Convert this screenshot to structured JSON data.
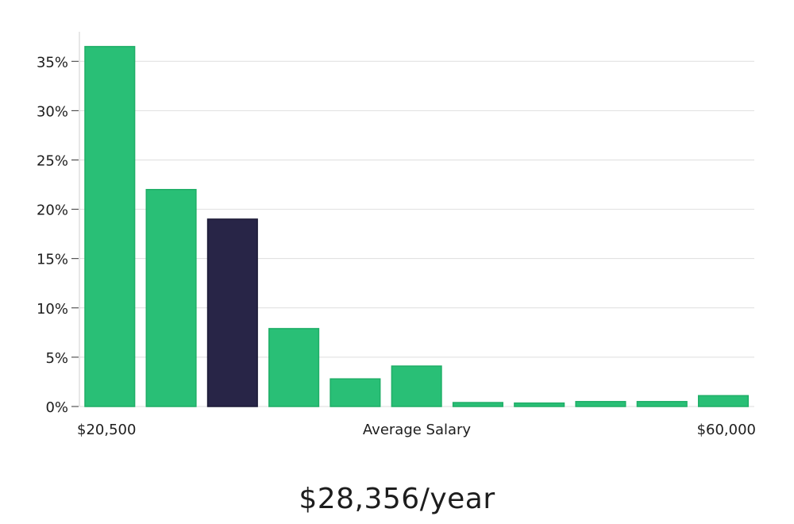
{
  "chart_data": {
    "type": "bar",
    "ylim": [
      0,
      38
    ],
    "yticks": [
      0,
      5,
      10,
      15,
      20,
      25,
      30,
      35
    ],
    "y_tick_suffix": "%",
    "values": [
      36.5,
      22.0,
      19.0,
      7.9,
      2.8,
      4.1,
      0.4,
      0.35,
      0.5,
      0.5,
      1.1
    ],
    "highlight_index": 2,
    "x_min_label": "$20,500",
    "x_max_label": "$60,000",
    "xlabel": "Average Salary",
    "grid": true,
    "colors": {
      "bar": "#29bf76",
      "bar_border": "#1fae67",
      "highlight": "#282547",
      "grid": "#dedede",
      "axis": "#cfcfcf"
    }
  },
  "summary": {
    "average_salary": "$28,356/year"
  }
}
